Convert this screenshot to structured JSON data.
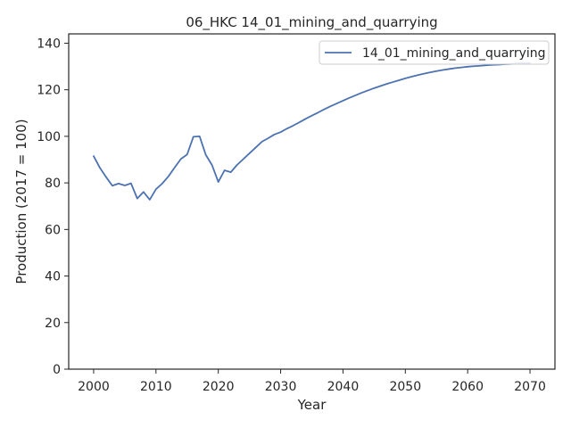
{
  "chart_data": {
    "type": "line",
    "title": "06_HKC 14_01_mining_and_quarrying",
    "xlabel": "Year",
    "ylabel": "Production (2017 = 100)",
    "xlim": [
      1996,
      2074
    ],
    "ylim": [
      0,
      144
    ],
    "xticks": [
      2000,
      2010,
      2020,
      2030,
      2040,
      2050,
      2060,
      2070
    ],
    "yticks": [
      0,
      20,
      40,
      60,
      80,
      100,
      120,
      140
    ],
    "grid": false,
    "legend": "top-right",
    "series": [
      {
        "name": "14_01_mining_and_quarrying",
        "color": "#4c72b0",
        "x": [
          2000,
          2001,
          2002,
          2003,
          2004,
          2005,
          2006,
          2007,
          2008,
          2009,
          2010,
          2011,
          2012,
          2013,
          2014,
          2015,
          2016,
          2017,
          2018,
          2019,
          2020,
          2021,
          2022,
          2023,
          2024,
          2025,
          2026,
          2027,
          2028,
          2029,
          2030,
          2031,
          2032,
          2033,
          2034,
          2035,
          2036,
          2037,
          2038,
          2039,
          2040,
          2041,
          2042,
          2043,
          2044,
          2045,
          2046,
          2047,
          2048,
          2049,
          2050,
          2051,
          2052,
          2053,
          2054,
          2055,
          2056,
          2057,
          2058,
          2059,
          2060,
          2061,
          2062,
          2063,
          2064,
          2065,
          2066,
          2067,
          2068,
          2069,
          2070
        ],
        "y": [
          91.5,
          86.5,
          82.5,
          78.8,
          79.7,
          78.9,
          79.8,
          73.3,
          76.1,
          72.8,
          77.3,
          79.7,
          82.8,
          86.6,
          90.3,
          92.2,
          99.8,
          100.0,
          92.0,
          87.6,
          80.4,
          85.4,
          84.6,
          87.7,
          90.2,
          92.7,
          95.2,
          97.7,
          99.2,
          100.8,
          101.8,
          103.3,
          104.6,
          106.0,
          107.5,
          108.9,
          110.2,
          111.6,
          112.9,
          114.1,
          115.3,
          116.5,
          117.6,
          118.7,
          119.7,
          120.7,
          121.6,
          122.5,
          123.3,
          124.1,
          124.9,
          125.6,
          126.3,
          126.9,
          127.5,
          128.0,
          128.5,
          128.9,
          129.3,
          129.6,
          129.9,
          130.1,
          130.3,
          130.5,
          130.7,
          130.8,
          131.0,
          131.1,
          131.3,
          131.4,
          131.5
        ]
      }
    ]
  }
}
